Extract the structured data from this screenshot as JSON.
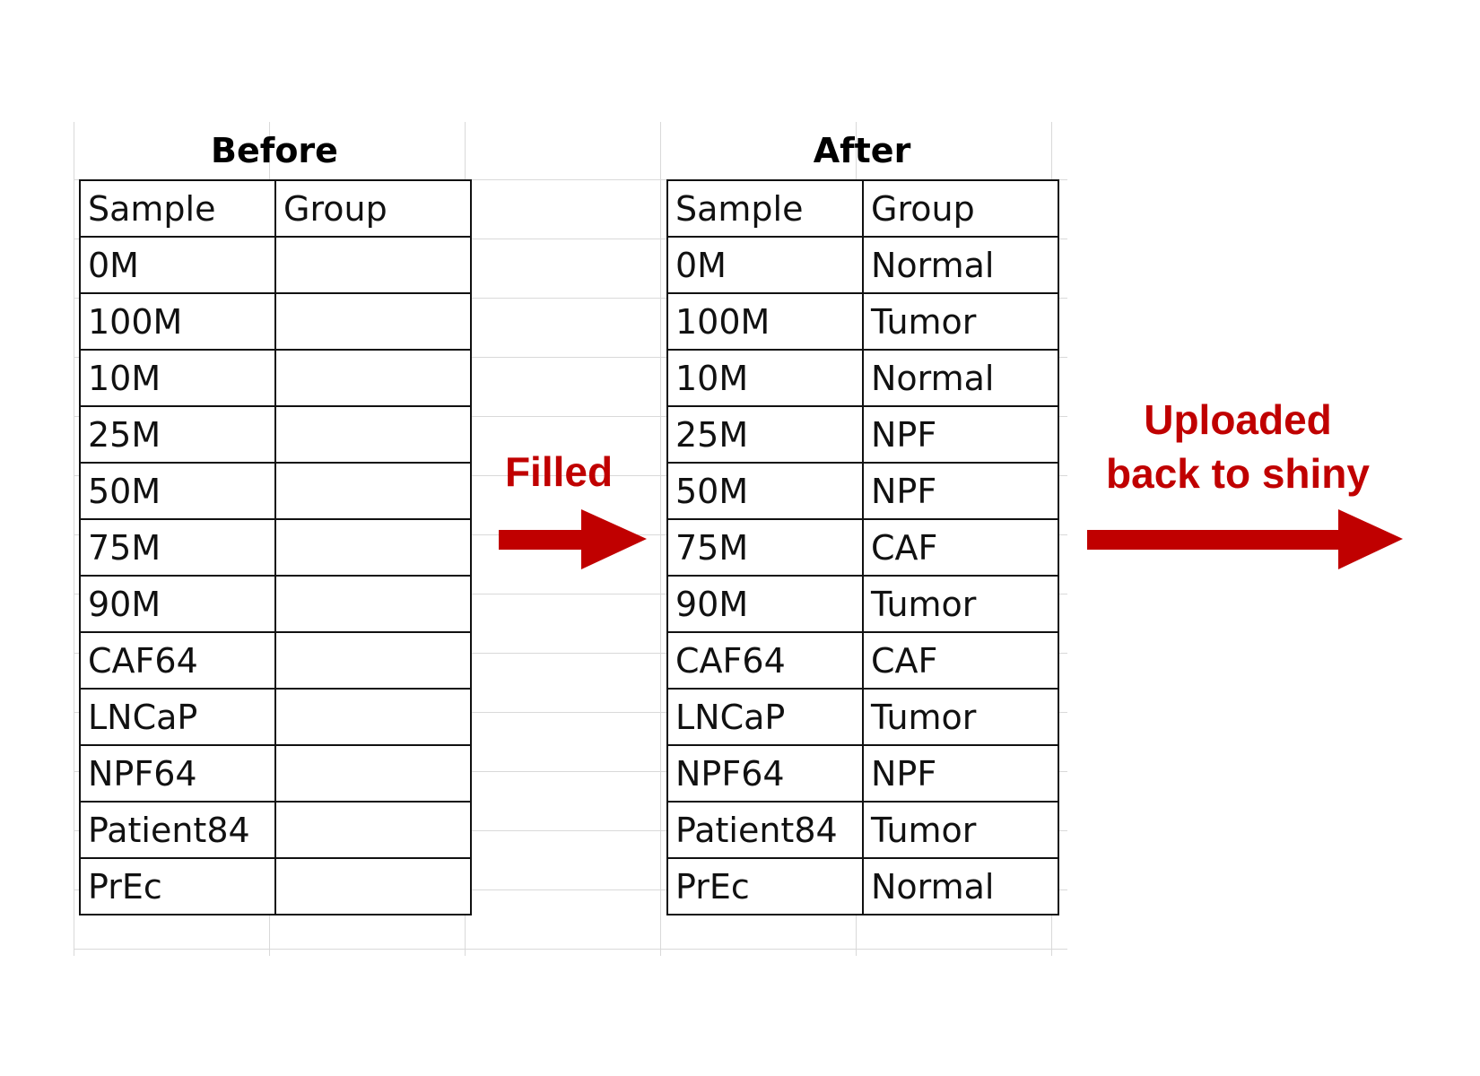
{
  "before": {
    "title": "Before",
    "headers": [
      "Sample",
      "Group"
    ],
    "rows": [
      [
        "0M",
        ""
      ],
      [
        "100M",
        ""
      ],
      [
        "10M",
        ""
      ],
      [
        "25M",
        ""
      ],
      [
        "50M",
        ""
      ],
      [
        "75M",
        ""
      ],
      [
        "90M",
        ""
      ],
      [
        "CAF64",
        ""
      ],
      [
        "LNCaP",
        ""
      ],
      [
        "NPF64",
        ""
      ],
      [
        "Patient84",
        ""
      ],
      [
        "PrEc",
        ""
      ]
    ]
  },
  "after": {
    "title": "After",
    "headers": [
      "Sample",
      "Group"
    ],
    "rows": [
      [
        "0M",
        "Normal"
      ],
      [
        "100M",
        "Tumor"
      ],
      [
        "10M",
        "Normal"
      ],
      [
        "25M",
        "NPF"
      ],
      [
        "50M",
        "NPF"
      ],
      [
        "75M",
        "CAF"
      ],
      [
        "90M",
        "Tumor"
      ],
      [
        "CAF64",
        "CAF"
      ],
      [
        "LNCaP",
        "Tumor"
      ],
      [
        "NPF64",
        "NPF"
      ],
      [
        "Patient84",
        "Tumor"
      ],
      [
        "PrEc",
        "Normal"
      ]
    ]
  },
  "arrows": {
    "filled_label": "Filled",
    "uploaded_label_line1": "Uploaded",
    "uploaded_label_line2": "back to shiny",
    "color": "#c00000",
    "icon": "right-arrow-icon"
  }
}
